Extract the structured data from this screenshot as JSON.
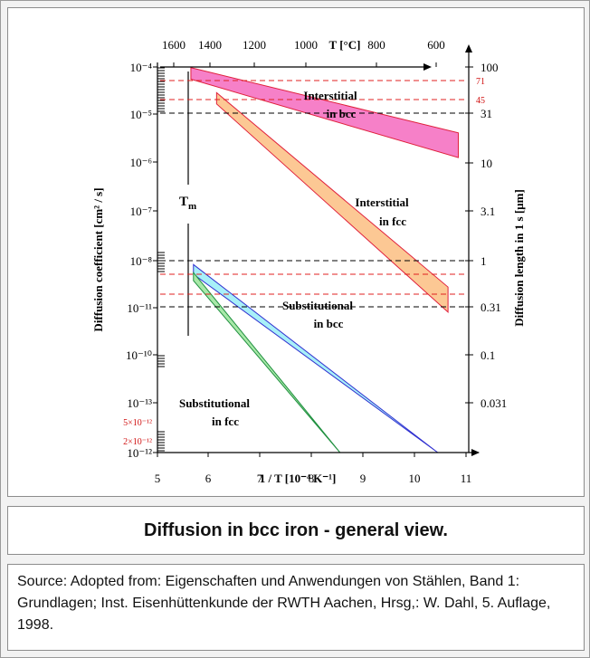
{
  "caption": "Diffusion in bcc iron - general view.",
  "source": "Source: Adopted from: Eigenschaften und Anwendungen von Stählen, Band 1: Grundlagen; Inst. Eisenhüttenkunde der RWTH Aachen, Hrsg,: W. Dahl, 5. Auflage, 1998.",
  "chart_data": {
    "type": "area",
    "top_axis": {
      "label": "T [°C]",
      "ticks": [
        "1600",
        "1400",
        "1200",
        "1000",
        "800",
        "600"
      ]
    },
    "bottom_axis": {
      "label": "1 / T [10⁻⁴ K⁻¹]",
      "ticks": [
        "5",
        "6",
        "7",
        "8",
        "9",
        "10",
        "11"
      ],
      "range": [
        5,
        11
      ]
    },
    "left_axis": {
      "label": "Diffusion coefficient [cm² / s]",
      "scale": "log",
      "ticks": [
        "10⁻⁴",
        "10⁻⁵",
        "10⁻⁶",
        "10⁻⁷",
        "10⁻⁸",
        "10⁻¹¹",
        "10⁻¹⁰",
        "10⁻¹³",
        "10⁻¹²"
      ],
      "red_ticks": [
        "5×10⁻¹²",
        "2×10⁻¹²"
      ]
    },
    "right_axis": {
      "label": "Diffusion length in 1 s [µm]",
      "ticks": [
        "100",
        "31",
        "10",
        "3.1",
        "1",
        "0.31",
        "0.1",
        "0.031"
      ],
      "red_ticks": [
        "71",
        "45"
      ]
    },
    "melting_label": "Tm",
    "series": [
      {
        "name": "Interstitial in bcc",
        "color": "#f680c8",
        "edge": "#e0203c",
        "x": [
          5.65,
          10.85
        ],
        "upper": [
          -4.02,
          -6.05
        ],
        "lower": [
          -4.38,
          -6.82
        ]
      },
      {
        "name": "Interstitial in fcc",
        "color": "#fcc894",
        "edge": "#e0203c",
        "x": [
          6.15,
          10.65
        ],
        "upper": [
          -4.8,
          -10.85
        ],
        "lower": [
          -5.15,
          -11.63
        ]
      },
      {
        "name": "Substitutional in bcc",
        "color": "#a8f0f8",
        "edge": "#3030d0",
        "x": [
          5.7,
          10.45
        ],
        "upper": [
          -10.15,
          -16.0
        ],
        "lower": [
          -10.45,
          -16.0
        ]
      },
      {
        "name": "Substitutional in fcc",
        "color": "#a8e8a8",
        "edge": "#209040",
        "x": [
          5.7,
          8.55
        ],
        "upper": [
          -10.4,
          -16.0
        ],
        "lower": [
          -10.65,
          -16.0
        ]
      }
    ]
  }
}
